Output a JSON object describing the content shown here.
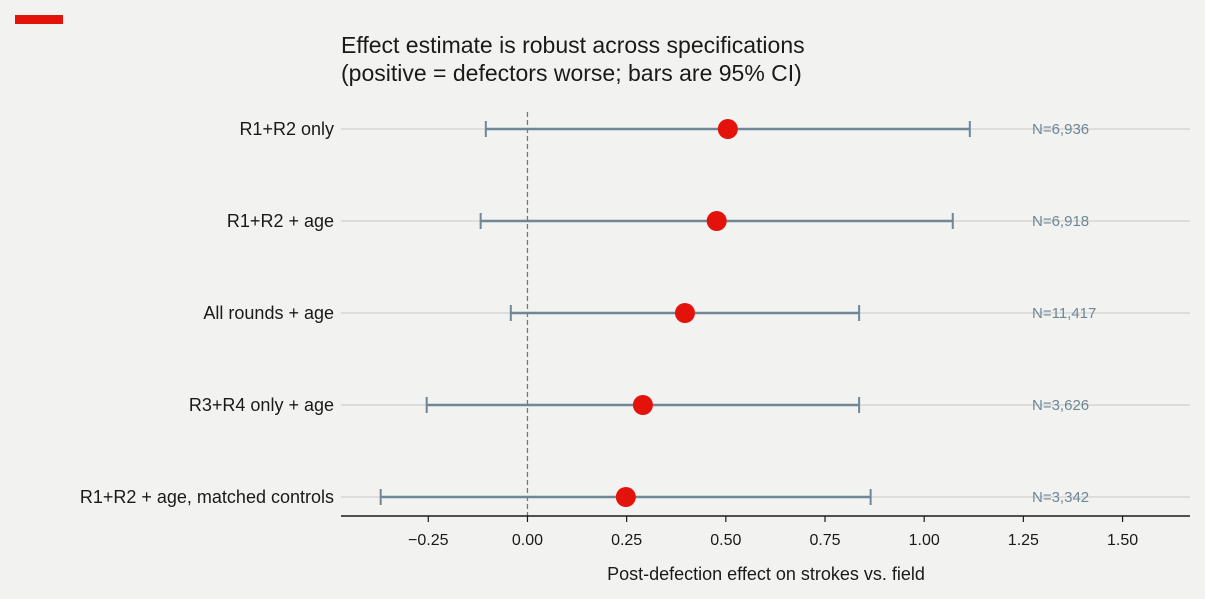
{
  "brand": {
    "accent_color": "#e3120b"
  },
  "chart_data": {
    "type": "forest",
    "title": "Effect estimate is robust across specifications",
    "subtitle": "(positive = defectors worse; bars are 95% CI)",
    "xlabel": "Post-defection effect on strokes vs. field",
    "xlim": [
      -0.47,
      1.67
    ],
    "xticks": [
      -0.25,
      0.0,
      0.25,
      0.5,
      0.75,
      1.0,
      1.25,
      1.5
    ],
    "xtick_labels": [
      "−0.25",
      "0.00",
      "0.25",
      "0.50",
      "0.75",
      "1.00",
      "1.25",
      "1.50"
    ],
    "reference_line": 0,
    "grid": "horizontal",
    "colors": {
      "point": "#e3120b",
      "ci": "#6f8796",
      "n_label": "#6f8796",
      "grid": "#c8c8c8",
      "reference": "#777777"
    },
    "rows": [
      {
        "label": "R1+R2 only",
        "estimate": 0.505,
        "ci_low": -0.105,
        "ci_high": 1.115,
        "n_label": "N=6,936"
      },
      {
        "label": "R1+R2  + age",
        "estimate": 0.477,
        "ci_low": -0.118,
        "ci_high": 1.072,
        "n_label": "N=6,918"
      },
      {
        "label": "All rounds  + age",
        "estimate": 0.397,
        "ci_low": -0.042,
        "ci_high": 0.836,
        "n_label": "N=11,417"
      },
      {
        "label": "R3+R4 only  + age",
        "estimate": 0.291,
        "ci_low": -0.254,
        "ci_high": 0.836,
        "n_label": "N=3,626"
      },
      {
        "label": "R1+R2 + age, matched controls",
        "estimate": 0.248,
        "ci_low": -0.37,
        "ci_high": 0.865,
        "n_label": "N=3,342"
      }
    ]
  }
}
